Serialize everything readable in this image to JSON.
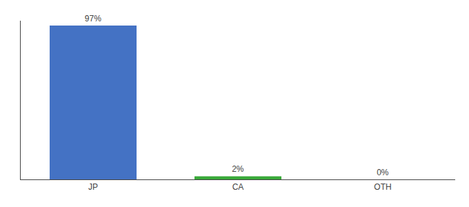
{
  "chart_data": {
    "type": "bar",
    "categories": [
      "JP",
      "CA",
      "OTH"
    ],
    "values": [
      97,
      2,
      0
    ],
    "value_labels": [
      "97%",
      "2%",
      "0%"
    ],
    "colors": [
      "#4472c4",
      "#3aaa3a",
      "#4472c4"
    ],
    "ylim": [
      0,
      100
    ],
    "data_labels": true,
    "tick_labels": "x",
    "grid": false
  }
}
